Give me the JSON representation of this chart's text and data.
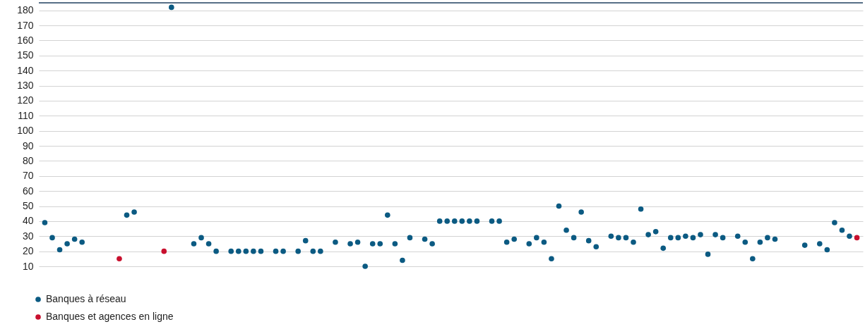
{
  "chart_data": {
    "type": "scatter",
    "categories": [
      null,
      null,
      null,
      null,
      null,
      null,
      null,
      null,
      null,
      null,
      null,
      null,
      null,
      null,
      null,
      null,
      null,
      null,
      null,
      null,
      null,
      null,
      null,
      null,
      null,
      null,
      null,
      null,
      null,
      null,
      null,
      null,
      null,
      null,
      null,
      null,
      null,
      null,
      null,
      null,
      null,
      null,
      null,
      null,
      null,
      null,
      null,
      null,
      null,
      null,
      null,
      null,
      null,
      null,
      null,
      null,
      null,
      null,
      null,
      null,
      null,
      null,
      null,
      null,
      null,
      null,
      null,
      null,
      null,
      null,
      null,
      null,
      null,
      null,
      null,
      null,
      null,
      null,
      null,
      null,
      null,
      null,
      null,
      null,
      null,
      null,
      null,
      null,
      null,
      null,
      null,
      null,
      null,
      null,
      null,
      null,
      null,
      null,
      null,
      null,
      null,
      null,
      null,
      null,
      null,
      null,
      null,
      null,
      null,
      null
    ],
    "series": [
      {
        "name": "Banques à réseau",
        "color": "#0b5a82",
        "values": [
          39,
          29,
          21,
          25,
          28,
          26,
          null,
          null,
          null,
          null,
          null,
          44,
          46,
          null,
          null,
          null,
          null,
          182,
          null,
          null,
          25,
          29,
          25,
          20,
          null,
          20,
          20,
          20,
          20,
          20,
          null,
          20,
          20,
          null,
          20,
          27,
          20,
          20,
          null,
          26,
          null,
          25,
          26,
          10,
          25,
          25,
          44,
          25,
          14,
          29,
          null,
          28,
          25,
          40,
          40,
          40,
          40,
          40,
          40,
          null,
          40,
          40,
          26,
          28,
          null,
          25,
          29,
          26,
          15,
          50,
          34,
          29,
          46,
          27,
          23,
          null,
          30,
          29,
          29,
          26,
          48,
          31,
          33,
          22,
          29,
          29,
          30,
          29,
          31,
          18,
          31,
          29,
          null,
          30,
          26,
          15,
          26,
          29,
          28,
          null,
          null,
          null,
          24,
          null,
          25,
          21,
          39,
          34,
          30,
          null
        ]
      },
      {
        "name": "Banques et agences en ligne",
        "color": "#c8102e",
        "values": [
          null,
          null,
          null,
          null,
          null,
          null,
          null,
          null,
          null,
          null,
          15,
          null,
          null,
          null,
          null,
          null,
          20,
          null,
          null,
          null,
          null,
          null,
          null,
          null,
          null,
          null,
          null,
          null,
          null,
          null,
          null,
          null,
          null,
          null,
          null,
          null,
          null,
          null,
          null,
          null,
          null,
          null,
          null,
          null,
          null,
          null,
          null,
          null,
          null,
          null,
          null,
          null,
          null,
          null,
          null,
          null,
          null,
          null,
          null,
          null,
          null,
          null,
          null,
          null,
          null,
          null,
          null,
          null,
          null,
          null,
          null,
          null,
          null,
          null,
          null,
          null,
          null,
          null,
          null,
          null,
          null,
          null,
          null,
          null,
          null,
          null,
          null,
          null,
          null,
          null,
          null,
          null,
          null,
          null,
          null,
          null,
          null,
          null,
          null,
          null,
          null,
          null,
          null,
          null,
          null,
          null,
          null,
          null,
          null,
          29
        ]
      }
    ],
    "ylim": [
      10,
      185
    ],
    "yticks": [
      10,
      20,
      30,
      40,
      50,
      60,
      70,
      80,
      90,
      100,
      110,
      120,
      130,
      140,
      150,
      160,
      170,
      180
    ],
    "grid": "y",
    "legend": "bottom left",
    "marker": "circle"
  }
}
